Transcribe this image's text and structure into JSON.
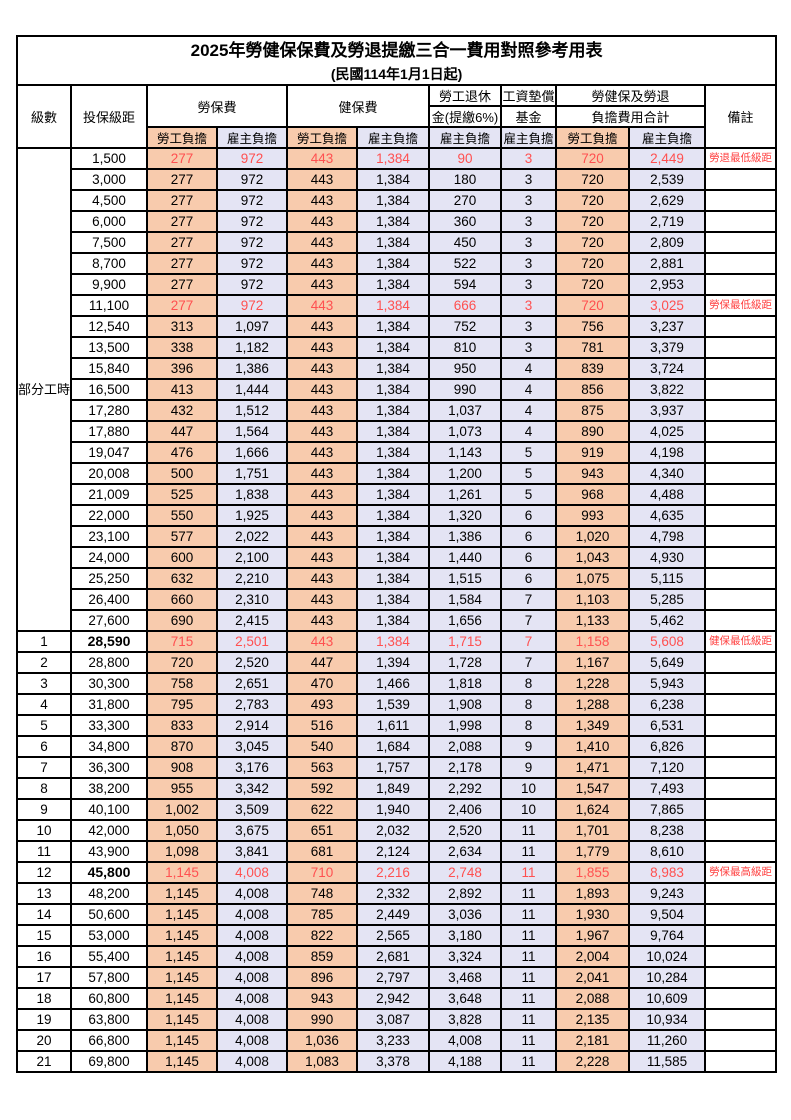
{
  "title": "2025年勞健保保費及勞退提繳三合一費用對照參考用表",
  "subtitle": "(民國114年1月1日起)",
  "headers": {
    "level": "級數",
    "bracket": "投保級距",
    "labor_insurance": "勞保費",
    "health_insurance": "健保費",
    "pension_line1": "勞工退休",
    "pension_line2": "金(提繳6%)",
    "wage_fund_line1": "工資墊償",
    "wage_fund_line2": "基金",
    "total_line1": "勞健保及勞退",
    "total_line2": "負擔費用合計",
    "remark": "備註",
    "employee_burden": "勞工負擔",
    "employer_burden": "雇主負擔"
  },
  "part_time_label": "部分工時",
  "colors": {
    "employee_fill": "#F8CBAD",
    "employer_fill": "#E4E4F4",
    "highlight_text": "#FF5050",
    "remark_text": "#FF4040",
    "border": "#000000"
  },
  "rows": [
    {
      "section": "part_time",
      "level": "",
      "bracket": "1,500",
      "labor_employee": "277",
      "labor_employer": "972",
      "health_employee": "443",
      "health_employer": "1,384",
      "pension_employer": "90",
      "wage_fund_employer": "3",
      "total_employee": "720",
      "total_employer": "2,449",
      "remark": "勞退最低級距",
      "highlight": true
    },
    {
      "section": "part_time",
      "level": "",
      "bracket": "3,000",
      "labor_employee": "277",
      "labor_employer": "972",
      "health_employee": "443",
      "health_employer": "1,384",
      "pension_employer": "180",
      "wage_fund_employer": "3",
      "total_employee": "720",
      "total_employer": "2,539",
      "remark": "",
      "highlight": false
    },
    {
      "section": "part_time",
      "level": "",
      "bracket": "4,500",
      "labor_employee": "277",
      "labor_employer": "972",
      "health_employee": "443",
      "health_employer": "1,384",
      "pension_employer": "270",
      "wage_fund_employer": "3",
      "total_employee": "720",
      "total_employer": "2,629",
      "remark": "",
      "highlight": false
    },
    {
      "section": "part_time",
      "level": "",
      "bracket": "6,000",
      "labor_employee": "277",
      "labor_employer": "972",
      "health_employee": "443",
      "health_employer": "1,384",
      "pension_employer": "360",
      "wage_fund_employer": "3",
      "total_employee": "720",
      "total_employer": "2,719",
      "remark": "",
      "highlight": false
    },
    {
      "section": "part_time",
      "level": "",
      "bracket": "7,500",
      "labor_employee": "277",
      "labor_employer": "972",
      "health_employee": "443",
      "health_employer": "1,384",
      "pension_employer": "450",
      "wage_fund_employer": "3",
      "total_employee": "720",
      "total_employer": "2,809",
      "remark": "",
      "highlight": false
    },
    {
      "section": "part_time",
      "level": "",
      "bracket": "8,700",
      "labor_employee": "277",
      "labor_employer": "972",
      "health_employee": "443",
      "health_employer": "1,384",
      "pension_employer": "522",
      "wage_fund_employer": "3",
      "total_employee": "720",
      "total_employer": "2,881",
      "remark": "",
      "highlight": false
    },
    {
      "section": "part_time",
      "level": "",
      "bracket": "9,900",
      "labor_employee": "277",
      "labor_employer": "972",
      "health_employee": "443",
      "health_employer": "1,384",
      "pension_employer": "594",
      "wage_fund_employer": "3",
      "total_employee": "720",
      "total_employer": "2,953",
      "remark": "",
      "highlight": false
    },
    {
      "section": "part_time",
      "level": "",
      "bracket": "11,100",
      "labor_employee": "277",
      "labor_employer": "972",
      "health_employee": "443",
      "health_employer": "1,384",
      "pension_employer": "666",
      "wage_fund_employer": "3",
      "total_employee": "720",
      "total_employer": "3,025",
      "remark": "勞保最低級距",
      "highlight": true
    },
    {
      "section": "part_time",
      "level": "",
      "bracket": "12,540",
      "labor_employee": "313",
      "labor_employer": "1,097",
      "health_employee": "443",
      "health_employer": "1,384",
      "pension_employer": "752",
      "wage_fund_employer": "3",
      "total_employee": "756",
      "total_employer": "3,237",
      "remark": "",
      "highlight": false
    },
    {
      "section": "part_time",
      "level": "",
      "bracket": "13,500",
      "labor_employee": "338",
      "labor_employer": "1,182",
      "health_employee": "443",
      "health_employer": "1,384",
      "pension_employer": "810",
      "wage_fund_employer": "3",
      "total_employee": "781",
      "total_employer": "3,379",
      "remark": "",
      "highlight": false
    },
    {
      "section": "part_time",
      "level": "",
      "bracket": "15,840",
      "labor_employee": "396",
      "labor_employer": "1,386",
      "health_employee": "443",
      "health_employer": "1,384",
      "pension_employer": "950",
      "wage_fund_employer": "4",
      "total_employee": "839",
      "total_employer": "3,724",
      "remark": "",
      "highlight": false
    },
    {
      "section": "part_time",
      "level": "",
      "bracket": "16,500",
      "labor_employee": "413",
      "labor_employer": "1,444",
      "health_employee": "443",
      "health_employer": "1,384",
      "pension_employer": "990",
      "wage_fund_employer": "4",
      "total_employee": "856",
      "total_employer": "3,822",
      "remark": "",
      "highlight": false
    },
    {
      "section": "part_time",
      "level": "",
      "bracket": "17,280",
      "labor_employee": "432",
      "labor_employer": "1,512",
      "health_employee": "443",
      "health_employer": "1,384",
      "pension_employer": "1,037",
      "wage_fund_employer": "4",
      "total_employee": "875",
      "total_employer": "3,937",
      "remark": "",
      "highlight": false
    },
    {
      "section": "part_time",
      "level": "",
      "bracket": "17,880",
      "labor_employee": "447",
      "labor_employer": "1,564",
      "health_employee": "443",
      "health_employer": "1,384",
      "pension_employer": "1,073",
      "wage_fund_employer": "4",
      "total_employee": "890",
      "total_employer": "4,025",
      "remark": "",
      "highlight": false
    },
    {
      "section": "part_time",
      "level": "",
      "bracket": "19,047",
      "labor_employee": "476",
      "labor_employer": "1,666",
      "health_employee": "443",
      "health_employer": "1,384",
      "pension_employer": "1,143",
      "wage_fund_employer": "5",
      "total_employee": "919",
      "total_employer": "4,198",
      "remark": "",
      "highlight": false
    },
    {
      "section": "part_time",
      "level": "",
      "bracket": "20,008",
      "labor_employee": "500",
      "labor_employer": "1,751",
      "health_employee": "443",
      "health_employer": "1,384",
      "pension_employer": "1,200",
      "wage_fund_employer": "5",
      "total_employee": "943",
      "total_employer": "4,340",
      "remark": "",
      "highlight": false
    },
    {
      "section": "part_time",
      "level": "",
      "bracket": "21,009",
      "labor_employee": "525",
      "labor_employer": "1,838",
      "health_employee": "443",
      "health_employer": "1,384",
      "pension_employer": "1,261",
      "wage_fund_employer": "5",
      "total_employee": "968",
      "total_employer": "4,488",
      "remark": "",
      "highlight": false
    },
    {
      "section": "part_time",
      "level": "",
      "bracket": "22,000",
      "labor_employee": "550",
      "labor_employer": "1,925",
      "health_employee": "443",
      "health_employer": "1,384",
      "pension_employer": "1,320",
      "wage_fund_employer": "6",
      "total_employee": "993",
      "total_employer": "4,635",
      "remark": "",
      "highlight": false
    },
    {
      "section": "part_time",
      "level": "",
      "bracket": "23,100",
      "labor_employee": "577",
      "labor_employer": "2,022",
      "health_employee": "443",
      "health_employer": "1,384",
      "pension_employer": "1,386",
      "wage_fund_employer": "6",
      "total_employee": "1,020",
      "total_employer": "4,798",
      "remark": "",
      "highlight": false
    },
    {
      "section": "part_time",
      "level": "",
      "bracket": "24,000",
      "labor_employee": "600",
      "labor_employer": "2,100",
      "health_employee": "443",
      "health_employer": "1,384",
      "pension_employer": "1,440",
      "wage_fund_employer": "6",
      "total_employee": "1,043",
      "total_employer": "4,930",
      "remark": "",
      "highlight": false
    },
    {
      "section": "part_time",
      "level": "",
      "bracket": "25,250",
      "labor_employee": "632",
      "labor_employer": "2,210",
      "health_employee": "443",
      "health_employer": "1,384",
      "pension_employer": "1,515",
      "wage_fund_employer": "6",
      "total_employee": "1,075",
      "total_employer": "5,115",
      "remark": "",
      "highlight": false
    },
    {
      "section": "part_time",
      "level": "",
      "bracket": "26,400",
      "labor_employee": "660",
      "labor_employer": "2,310",
      "health_employee": "443",
      "health_employer": "1,384",
      "pension_employer": "1,584",
      "wage_fund_employer": "7",
      "total_employee": "1,103",
      "total_employer": "5,285",
      "remark": "",
      "highlight": false
    },
    {
      "section": "part_time",
      "level": "",
      "bracket": "27,600",
      "labor_employee": "690",
      "labor_employer": "2,415",
      "health_employee": "443",
      "health_employer": "1,384",
      "pension_employer": "1,656",
      "wage_fund_employer": "7",
      "total_employee": "1,133",
      "total_employer": "5,462",
      "remark": "",
      "highlight": false
    },
    {
      "section": "level",
      "level": "1",
      "bracket": "28,590",
      "labor_employee": "715",
      "labor_employer": "2,501",
      "health_employee": "443",
      "health_employer": "1,384",
      "pension_employer": "1,715",
      "wage_fund_employer": "7",
      "total_employee": "1,158",
      "total_employer": "5,608",
      "remark": "健保最低級距",
      "highlight": true,
      "bold_bracket": true
    },
    {
      "section": "level",
      "level": "2",
      "bracket": "28,800",
      "labor_employee": "720",
      "labor_employer": "2,520",
      "health_employee": "447",
      "health_employer": "1,394",
      "pension_employer": "1,728",
      "wage_fund_employer": "7",
      "total_employee": "1,167",
      "total_employer": "5,649",
      "remark": "",
      "highlight": false
    },
    {
      "section": "level",
      "level": "3",
      "bracket": "30,300",
      "labor_employee": "758",
      "labor_employer": "2,651",
      "health_employee": "470",
      "health_employer": "1,466",
      "pension_employer": "1,818",
      "wage_fund_employer": "8",
      "total_employee": "1,228",
      "total_employer": "5,943",
      "remark": "",
      "highlight": false
    },
    {
      "section": "level",
      "level": "4",
      "bracket": "31,800",
      "labor_employee": "795",
      "labor_employer": "2,783",
      "health_employee": "493",
      "health_employer": "1,539",
      "pension_employer": "1,908",
      "wage_fund_employer": "8",
      "total_employee": "1,288",
      "total_employer": "6,238",
      "remark": "",
      "highlight": false
    },
    {
      "section": "level",
      "level": "5",
      "bracket": "33,300",
      "labor_employee": "833",
      "labor_employer": "2,914",
      "health_employee": "516",
      "health_employer": "1,611",
      "pension_employer": "1,998",
      "wage_fund_employer": "8",
      "total_employee": "1,349",
      "total_employer": "6,531",
      "remark": "",
      "highlight": false
    },
    {
      "section": "level",
      "level": "6",
      "bracket": "34,800",
      "labor_employee": "870",
      "labor_employer": "3,045",
      "health_employee": "540",
      "health_employer": "1,684",
      "pension_employer": "2,088",
      "wage_fund_employer": "9",
      "total_employee": "1,410",
      "total_employer": "6,826",
      "remark": "",
      "highlight": false
    },
    {
      "section": "level",
      "level": "7",
      "bracket": "36,300",
      "labor_employee": "908",
      "labor_employer": "3,176",
      "health_employee": "563",
      "health_employer": "1,757",
      "pension_employer": "2,178",
      "wage_fund_employer": "9",
      "total_employee": "1,471",
      "total_employer": "7,120",
      "remark": "",
      "highlight": false
    },
    {
      "section": "level",
      "level": "8",
      "bracket": "38,200",
      "labor_employee": "955",
      "labor_employer": "3,342",
      "health_employee": "592",
      "health_employer": "1,849",
      "pension_employer": "2,292",
      "wage_fund_employer": "10",
      "total_employee": "1,547",
      "total_employer": "7,493",
      "remark": "",
      "highlight": false
    },
    {
      "section": "level",
      "level": "9",
      "bracket": "40,100",
      "labor_employee": "1,002",
      "labor_employer": "3,509",
      "health_employee": "622",
      "health_employer": "1,940",
      "pension_employer": "2,406",
      "wage_fund_employer": "10",
      "total_employee": "1,624",
      "total_employer": "7,865",
      "remark": "",
      "highlight": false
    },
    {
      "section": "level",
      "level": "10",
      "bracket": "42,000",
      "labor_employee": "1,050",
      "labor_employer": "3,675",
      "health_employee": "651",
      "health_employer": "2,032",
      "pension_employer": "2,520",
      "wage_fund_employer": "11",
      "total_employee": "1,701",
      "total_employer": "8,238",
      "remark": "",
      "highlight": false
    },
    {
      "section": "level",
      "level": "11",
      "bracket": "43,900",
      "labor_employee": "1,098",
      "labor_employer": "3,841",
      "health_employee": "681",
      "health_employer": "2,124",
      "pension_employer": "2,634",
      "wage_fund_employer": "11",
      "total_employee": "1,779",
      "total_employer": "8,610",
      "remark": "",
      "highlight": false
    },
    {
      "section": "level",
      "level": "12",
      "bracket": "45,800",
      "labor_employee": "1,145",
      "labor_employer": "4,008",
      "health_employee": "710",
      "health_employer": "2,216",
      "pension_employer": "2,748",
      "wage_fund_employer": "11",
      "total_employee": "1,855",
      "total_employer": "8,983",
      "remark": "勞保最高級距",
      "highlight": true,
      "bold_bracket": true
    },
    {
      "section": "level",
      "level": "13",
      "bracket": "48,200",
      "labor_employee": "1,145",
      "labor_employer": "4,008",
      "health_employee": "748",
      "health_employer": "2,332",
      "pension_employer": "2,892",
      "wage_fund_employer": "11",
      "total_employee": "1,893",
      "total_employer": "9,243",
      "remark": "",
      "highlight": false
    },
    {
      "section": "level",
      "level": "14",
      "bracket": "50,600",
      "labor_employee": "1,145",
      "labor_employer": "4,008",
      "health_employee": "785",
      "health_employer": "2,449",
      "pension_employer": "3,036",
      "wage_fund_employer": "11",
      "total_employee": "1,930",
      "total_employer": "9,504",
      "remark": "",
      "highlight": false
    },
    {
      "section": "level",
      "level": "15",
      "bracket": "53,000",
      "labor_employee": "1,145",
      "labor_employer": "4,008",
      "health_employee": "822",
      "health_employer": "2,565",
      "pension_employer": "3,180",
      "wage_fund_employer": "11",
      "total_employee": "1,967",
      "total_employer": "9,764",
      "remark": "",
      "highlight": false
    },
    {
      "section": "level",
      "level": "16",
      "bracket": "55,400",
      "labor_employee": "1,145",
      "labor_employer": "4,008",
      "health_employee": "859",
      "health_employer": "2,681",
      "pension_employer": "3,324",
      "wage_fund_employer": "11",
      "total_employee": "2,004",
      "total_employer": "10,024",
      "remark": "",
      "highlight": false
    },
    {
      "section": "level",
      "level": "17",
      "bracket": "57,800",
      "labor_employee": "1,145",
      "labor_employer": "4,008",
      "health_employee": "896",
      "health_employer": "2,797",
      "pension_employer": "3,468",
      "wage_fund_employer": "11",
      "total_employee": "2,041",
      "total_employer": "10,284",
      "remark": "",
      "highlight": false
    },
    {
      "section": "level",
      "level": "18",
      "bracket": "60,800",
      "labor_employee": "1,145",
      "labor_employer": "4,008",
      "health_employee": "943",
      "health_employer": "2,942",
      "pension_employer": "3,648",
      "wage_fund_employer": "11",
      "total_employee": "2,088",
      "total_employer": "10,609",
      "remark": "",
      "highlight": false
    },
    {
      "section": "level",
      "level": "19",
      "bracket": "63,800",
      "labor_employee": "1,145",
      "labor_employer": "4,008",
      "health_employee": "990",
      "health_employer": "3,087",
      "pension_employer": "3,828",
      "wage_fund_employer": "11",
      "total_employee": "2,135",
      "total_employer": "10,934",
      "remark": "",
      "highlight": false
    },
    {
      "section": "level",
      "level": "20",
      "bracket": "66,800",
      "labor_employee": "1,145",
      "labor_employer": "4,008",
      "health_employee": "1,036",
      "health_employer": "3,233",
      "pension_employer": "4,008",
      "wage_fund_employer": "11",
      "total_employee": "2,181",
      "total_employer": "11,260",
      "remark": "",
      "highlight": false
    },
    {
      "section": "level",
      "level": "21",
      "bracket": "69,800",
      "labor_employee": "1,145",
      "labor_employer": "4,008",
      "health_employee": "1,083",
      "health_employer": "3,378",
      "pension_employer": "4,188",
      "wage_fund_employer": "11",
      "total_employee": "2,228",
      "total_employer": "11,585",
      "remark": "",
      "highlight": false
    }
  ]
}
